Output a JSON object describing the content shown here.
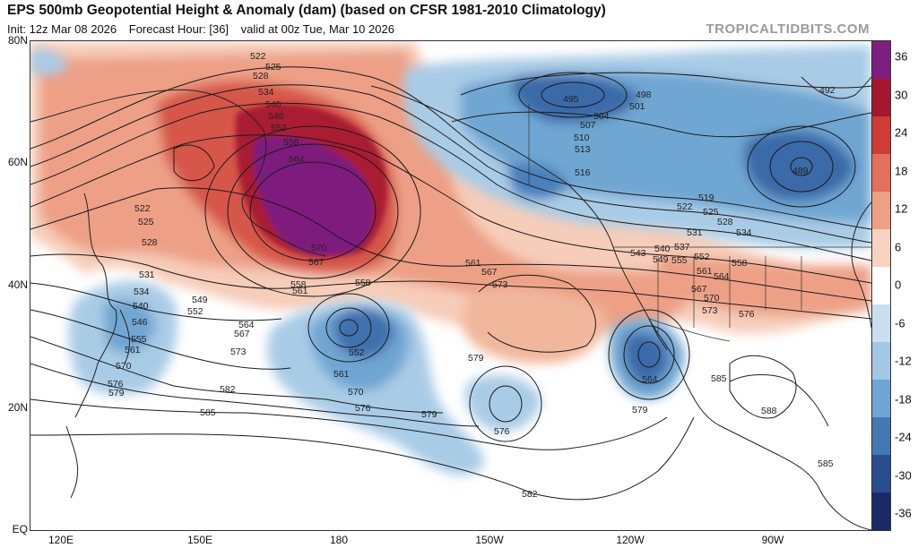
{
  "header": {
    "title": "EPS 500mb Geopotential Height & Anomaly (dam) (based on CFSR 1981-2010 Climatology)",
    "init": "Init: 12z Mar 08 2026",
    "forecast_hour": "Forecast Hour: [36]",
    "valid": "valid at 00z Tue, Mar 10 2026",
    "brand": "TROPICALTIDBITS.COM"
  },
  "axes": {
    "lat_labels": [
      "80N",
      "60N",
      "40N",
      "20N",
      "EQ"
    ],
    "lon_labels": [
      "120E",
      "150E",
      "180",
      "150W",
      "120W",
      "90W"
    ]
  },
  "colorbar": {
    "ticks": [
      "36",
      "30",
      "24",
      "18",
      "12",
      "6",
      "0",
      "-6",
      "-12",
      "-18",
      "-24",
      "-30",
      "-36"
    ],
    "colors": [
      "#7e1e7e",
      "#a5172d",
      "#cf3b37",
      "#e2705a",
      "#eda083",
      "#f7d2c0",
      "#ffffff",
      "#c9dff0",
      "#a2c8e4",
      "#6fa6d2",
      "#4378b3",
      "#2a4d8f",
      "#1a2a66"
    ]
  },
  "map": {
    "anomaly_color_warm": [
      "#f9ded0",
      "#f1b89f",
      "#e68a6d",
      "#c9413a",
      "#9c1730",
      "#7e1e7e"
    ],
    "anomaly_color_cold": [
      "#d7e8f4",
      "#b3d2ea",
      "#7fb2da",
      "#4f87c0",
      "#2e5d9f"
    ],
    "contour_labels": [
      "522",
      "525",
      "528",
      "534",
      "540",
      "546",
      "552",
      "558",
      "564",
      "570",
      "567",
      "561",
      "558",
      "522",
      "525",
      "528",
      "531",
      "534",
      "537",
      "540",
      "546",
      "555",
      "561",
      "570",
      "576",
      "579",
      "549",
      "552",
      "564",
      "567",
      "573",
      "582",
      "585",
      "552",
      "561",
      "570",
      "576",
      "579",
      "576",
      "579",
      "558",
      "561",
      "567",
      "573",
      "579",
      "582",
      "495",
      "498",
      "501",
      "504",
      "507",
      "510",
      "513",
      "516",
      "519",
      "522",
      "525",
      "528",
      "531",
      "534",
      "543",
      "549",
      "552",
      "555",
      "561",
      "564",
      "567",
      "570",
      "573",
      "576",
      "579",
      "564",
      "585",
      "588",
      "585",
      "492",
      "489"
    ]
  }
}
